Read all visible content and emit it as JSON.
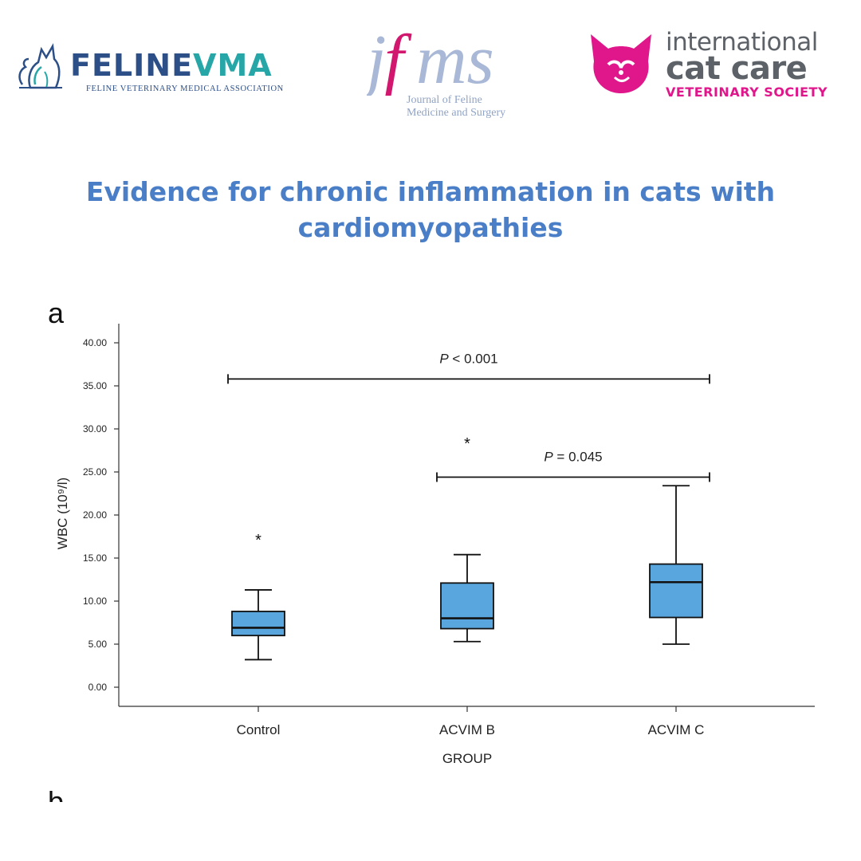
{
  "logos": {
    "felinevma": {
      "word_a": "FELINE",
      "word_b": "VMA",
      "subline": "FELINE VETERINARY MEDICAL ASSOCIATION",
      "color_primary": "#2c4f87",
      "color_accent": "#27a6a8"
    },
    "jfms": {
      "mark": "jfms",
      "line1": "Journal of Feline",
      "line2": "Medicine and Surgery",
      "color_f": "#d2186e",
      "color_rest": "#a9b8d6"
    },
    "icc": {
      "word1": "international",
      "word2": "cat care",
      "word3": "VETERINARY SOCIETY",
      "color_brand": "#e0168b",
      "color_grey": "#5d6168"
    }
  },
  "headline": {
    "line1": "Evidence for chronic inflammation in cats with",
    "line2": "cardiomyopathies",
    "color": "#4a7fc8"
  },
  "figure": {
    "panel_label": "a",
    "next_panel_label": "b"
  },
  "chart_data": {
    "type": "box",
    "xlabel": "GROUP",
    "ylabel": "WBC (10⁹/l)",
    "ylim": [
      0,
      40
    ],
    "yticks": [
      0,
      5,
      10,
      15,
      20,
      25,
      30,
      35,
      40
    ],
    "ytick_labels": [
      "0.00",
      "5.00",
      "10.00",
      "15.00",
      "20.00",
      "25.00",
      "30.00",
      "35.00",
      "40.00"
    ],
    "categories": [
      "Control",
      "ACVIM B",
      "ACVIM C"
    ],
    "box_color": "#58a6dd",
    "boxes": [
      {
        "whisker_low": 3.2,
        "q1": 6.0,
        "median": 6.9,
        "q3": 8.8,
        "whisker_high": 11.3,
        "outliers": [
          17.3
        ]
      },
      {
        "whisker_low": 5.3,
        "q1": 6.8,
        "median": 8.0,
        "q3": 12.1,
        "whisker_high": 15.4,
        "outliers": [
          28.5
        ]
      },
      {
        "whisker_low": 5.0,
        "q1": 8.1,
        "median": 12.2,
        "q3": 14.3,
        "whisker_high": 23.4,
        "outliers": []
      }
    ],
    "outlier_marker": "*",
    "significance": [
      {
        "from": "Control",
        "to": "ACVIM C",
        "y": 35.8,
        "p_symbol": "P",
        "p_rest": " < 0.001"
      },
      {
        "from": "ACVIM B",
        "to": "ACVIM C",
        "y": 24.4,
        "p_symbol": "P",
        "p_rest": " = 0.045"
      }
    ],
    "grid": false
  }
}
